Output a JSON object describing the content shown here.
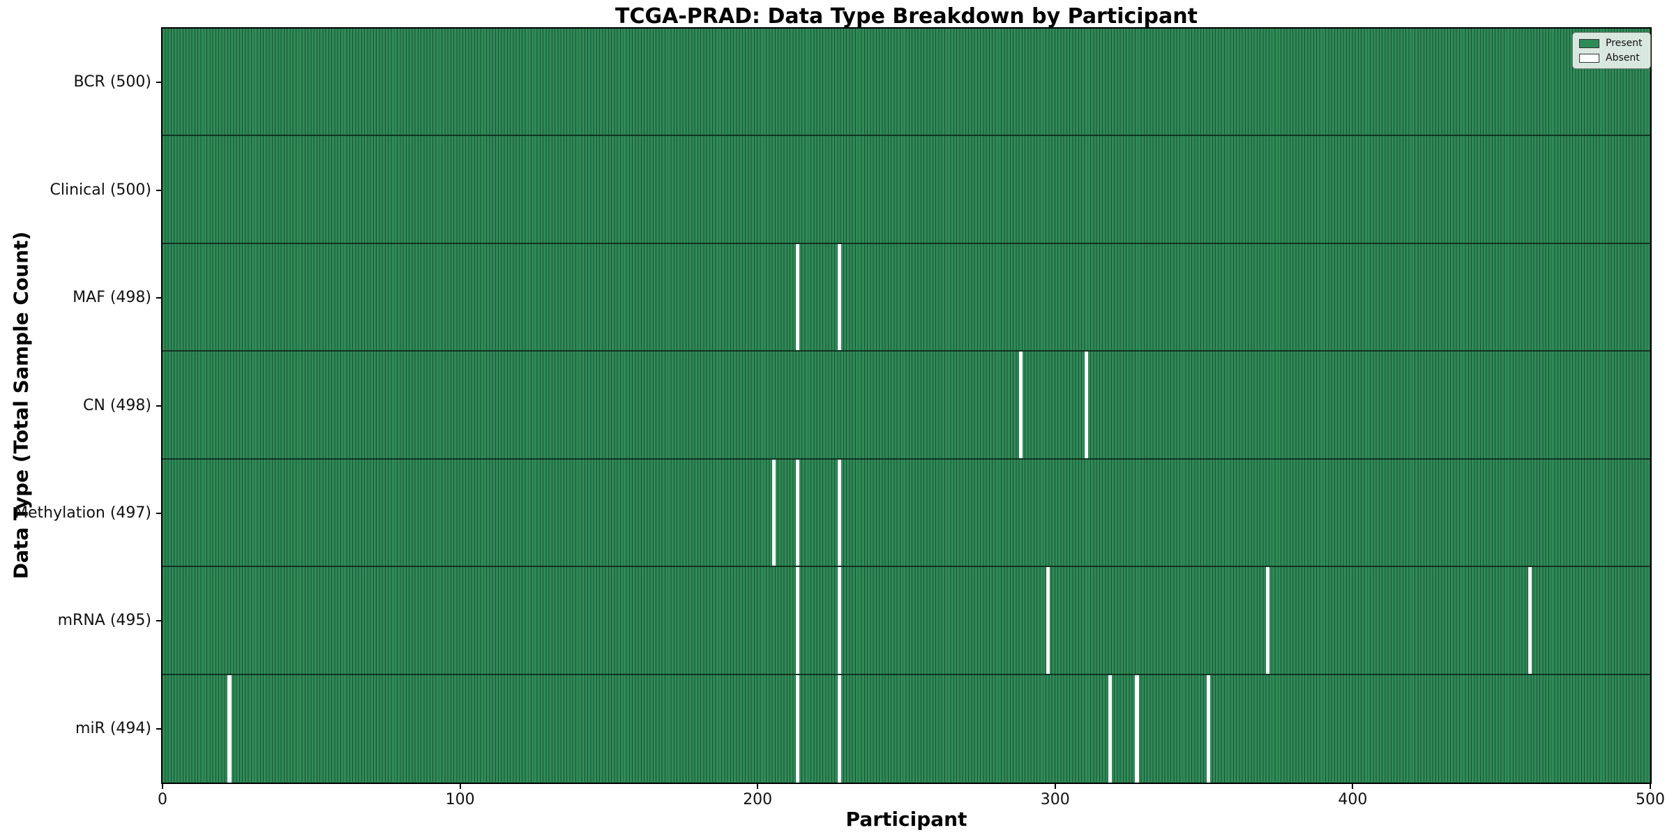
{
  "figure": {
    "title": "TCGA-PRAD: Data Type Breakdown by Participant",
    "xlabel": "Participant",
    "ylabel": "Data Type (Total Sample Count)"
  },
  "chart_data": {
    "type": "heatmap",
    "title": "TCGA-PRAD: Data Type Breakdown by Participant",
    "xlabel": "Participant",
    "ylabel": "Data Type (Total Sample Count)",
    "x_range": [
      0,
      500
    ],
    "x_ticks": [
      0,
      100,
      200,
      300,
      400,
      500
    ],
    "n_participants": 500,
    "grid": false,
    "legend_position": "upper right",
    "colors": {
      "present": "#2e8b57",
      "absent": "#ffffff",
      "bar_edge": "#1e4f36",
      "swatch_edge": "#333333"
    },
    "legend": [
      {
        "label": "Present",
        "color": "#2e8b57"
      },
      {
        "label": "Absent",
        "color": "#ffffff"
      }
    ],
    "rows": [
      {
        "data_type": "BCR",
        "label": "BCR (500)",
        "total_samples": 500,
        "absent_participants": []
      },
      {
        "data_type": "Clinical",
        "label": "Clinical (500)",
        "total_samples": 500,
        "absent_participants": []
      },
      {
        "data_type": "MAF",
        "label": "MAF (498)",
        "total_samples": 498,
        "absent_participants": [
          213,
          227
        ]
      },
      {
        "data_type": "CN",
        "label": "CN (498)",
        "total_samples": 498,
        "absent_participants": [
          288,
          310
        ]
      },
      {
        "data_type": "Methylation",
        "label": "Methylation (497)",
        "total_samples": 497,
        "absent_participants": [
          205,
          213,
          227
        ]
      },
      {
        "data_type": "mRNA",
        "label": "mRNA (495)",
        "total_samples": 495,
        "absent_participants": [
          213,
          227,
          297,
          371,
          459
        ]
      },
      {
        "data_type": "miR",
        "label": "miR (494)",
        "total_samples": 494,
        "absent_participants": [
          22,
          213,
          227,
          318,
          327,
          351
        ]
      }
    ]
  }
}
